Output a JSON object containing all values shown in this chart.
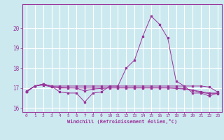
{
  "x": [
    0,
    1,
    2,
    3,
    4,
    5,
    6,
    7,
    8,
    9,
    10,
    11,
    12,
    13,
    14,
    15,
    16,
    17,
    18,
    19,
    20,
    21,
    22,
    23
  ],
  "y_main": [
    16.8,
    17.1,
    17.2,
    17.1,
    16.8,
    16.75,
    16.75,
    16.3,
    16.75,
    16.8,
    17.1,
    17.1,
    18.0,
    18.4,
    19.6,
    20.6,
    20.2,
    19.5,
    17.35,
    17.1,
    16.75,
    16.75,
    16.6,
    16.75
  ],
  "y_flat1": [
    16.85,
    17.1,
    17.2,
    17.1,
    17.1,
    17.1,
    17.1,
    17.1,
    17.1,
    17.1,
    17.1,
    17.1,
    17.1,
    17.1,
    17.1,
    17.1,
    17.1,
    17.1,
    17.1,
    17.1,
    17.1,
    17.1,
    17.05,
    16.8
  ],
  "y_flat2": [
    16.83,
    17.1,
    17.15,
    17.05,
    17.0,
    17.0,
    17.0,
    17.0,
    17.0,
    17.0,
    17.02,
    17.02,
    17.02,
    17.02,
    17.02,
    17.02,
    17.02,
    17.02,
    17.0,
    16.98,
    16.9,
    16.82,
    16.75,
    16.75
  ],
  "y_flat3": [
    16.82,
    17.1,
    17.18,
    17.08,
    17.05,
    17.02,
    17.0,
    16.85,
    16.95,
    16.98,
    17.0,
    17.0,
    17.0,
    17.0,
    17.0,
    17.0,
    17.0,
    17.0,
    16.98,
    16.95,
    16.88,
    16.78,
    16.72,
    16.72
  ],
  "line_color": "#993399",
  "bg_color": "#cce9f0",
  "grid_color": "#ffffff",
  "xlabel": "Windchill (Refroidissement éolien,°C)",
  "ylim": [
    15.8,
    21.2
  ],
  "xlim": [
    -0.5,
    23.5
  ],
  "yticks": [
    16,
    17,
    18,
    19,
    20
  ],
  "xticks": [
    0,
    1,
    2,
    3,
    4,
    5,
    6,
    7,
    8,
    9,
    10,
    11,
    12,
    13,
    14,
    15,
    16,
    17,
    18,
    19,
    20,
    21,
    22,
    23
  ]
}
